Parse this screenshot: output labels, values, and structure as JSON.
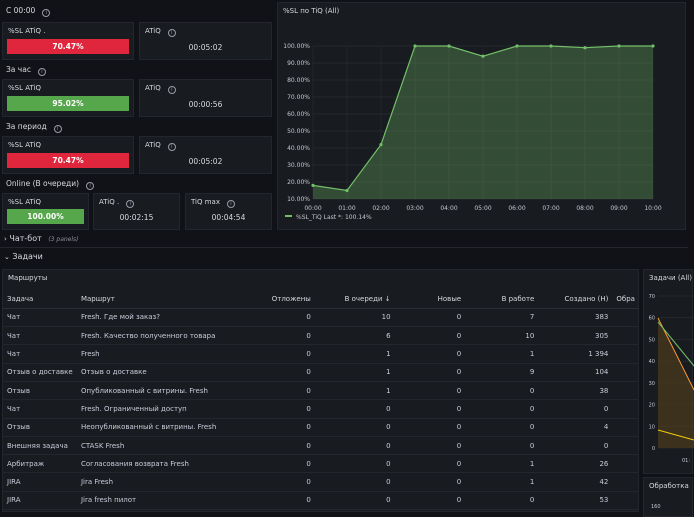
{
  "sections": {
    "s1": "С 00:00",
    "s2": "За час",
    "s3": "За период",
    "s4": "Online (В очереди)"
  },
  "stats": {
    "p1_title": "%SL ATiQ .",
    "p1_value": "70.47%",
    "p2_title": "ATiQ",
    "p2_value": "00:05:02",
    "p3_title": "%SL ATiQ",
    "p3_value": "95.02%",
    "p4_title": "ATiQ",
    "p4_value": "00:00:56",
    "p5_title": "%SL ATiQ",
    "p5_value": "70.47%",
    "p6_title": "ATiQ",
    "p6_value": "00:05:02",
    "p7_title": "%SL ATiQ",
    "p7_value": "100.00%",
    "p8_title": "ATiQ .",
    "p8_value": "00:02:15",
    "p9_title": "TiQ max",
    "p9_value": "00:04:54"
  },
  "colors": {
    "red": "#e0263d",
    "green": "#56a64b",
    "line": "#73bf69"
  },
  "chat_row": {
    "label": "Чат-бот",
    "count": "(3 panels)"
  },
  "tasks_row": {
    "label": "Задачи"
  },
  "routes": {
    "title": "Маршруты",
    "columns": [
      "Задача",
      "Маршрут",
      "Отложены",
      "В очереди ↓",
      "Новые",
      "В работе",
      "Создано (Н)",
      "Обра"
    ],
    "rows": [
      [
        "Чат",
        "Fresh. Где мой заказ?",
        "0",
        "10",
        "0",
        "7",
        "383"
      ],
      [
        "Чат",
        "Fresh. Качество полученного товара",
        "0",
        "6",
        "0",
        "10",
        "305"
      ],
      [
        "Чат",
        "Fresh",
        "0",
        "1",
        "0",
        "1",
        "1 394"
      ],
      [
        "Отзыв о доставке",
        "Отзыв о доставке",
        "0",
        "1",
        "0",
        "9",
        "104"
      ],
      [
        "Отзыв",
        "Опубликованный с витрины. Fresh",
        "0",
        "1",
        "0",
        "0",
        "38"
      ],
      [
        "Чат",
        "Fresh. Ограниченный доступ",
        "0",
        "0",
        "0",
        "0",
        "0"
      ],
      [
        "Отзыв",
        "Неопубликованный с витрины. Fresh",
        "0",
        "0",
        "0",
        "0",
        "4"
      ],
      [
        "Внешняя задача",
        "CTASK Fresh",
        "0",
        "0",
        "0",
        "0",
        "0"
      ],
      [
        "Арбитраж",
        "Согласования возврата Fresh",
        "0",
        "0",
        "0",
        "1",
        "26"
      ],
      [
        "JIRA",
        "Jira Fresh",
        "0",
        "0",
        "0",
        "1",
        "42"
      ],
      [
        "JIRA",
        "Jira fresh пилот",
        "0",
        "0",
        "0",
        "0",
        "53"
      ]
    ]
  },
  "side_panels": {
    "tasks_title": "Задачи (All)",
    "tasks_ticks": [
      "70",
      "60",
      "50",
      "40",
      "30",
      "20",
      "10",
      "0"
    ],
    "tasks_x": "01:",
    "proc_title": "Обработка",
    "proc_tick": "160"
  },
  "chart_data": {
    "type": "area",
    "title": "%SL по TiQ (All)",
    "x": [
      "00:00",
      "01:00",
      "02:00",
      "03:00",
      "04:00",
      "05:00",
      "06:00",
      "07:00",
      "08:00",
      "09:00",
      "10:00"
    ],
    "y_ticks": [
      "100.00%",
      "90.00%",
      "80.00%",
      "70.00%",
      "60.00%",
      "50.00%",
      "40.00%",
      "30.00%",
      "20.00%",
      "10.00%"
    ],
    "series": [
      {
        "name": "%SL_TiQ",
        "values": [
          18,
          15,
          42,
          100,
          100,
          94,
          100,
          100,
          99,
          100,
          100.14
        ]
      }
    ],
    "legend": "%SL_TiQ  Last *: 100.14%",
    "ylim": [
      10,
      100
    ]
  }
}
